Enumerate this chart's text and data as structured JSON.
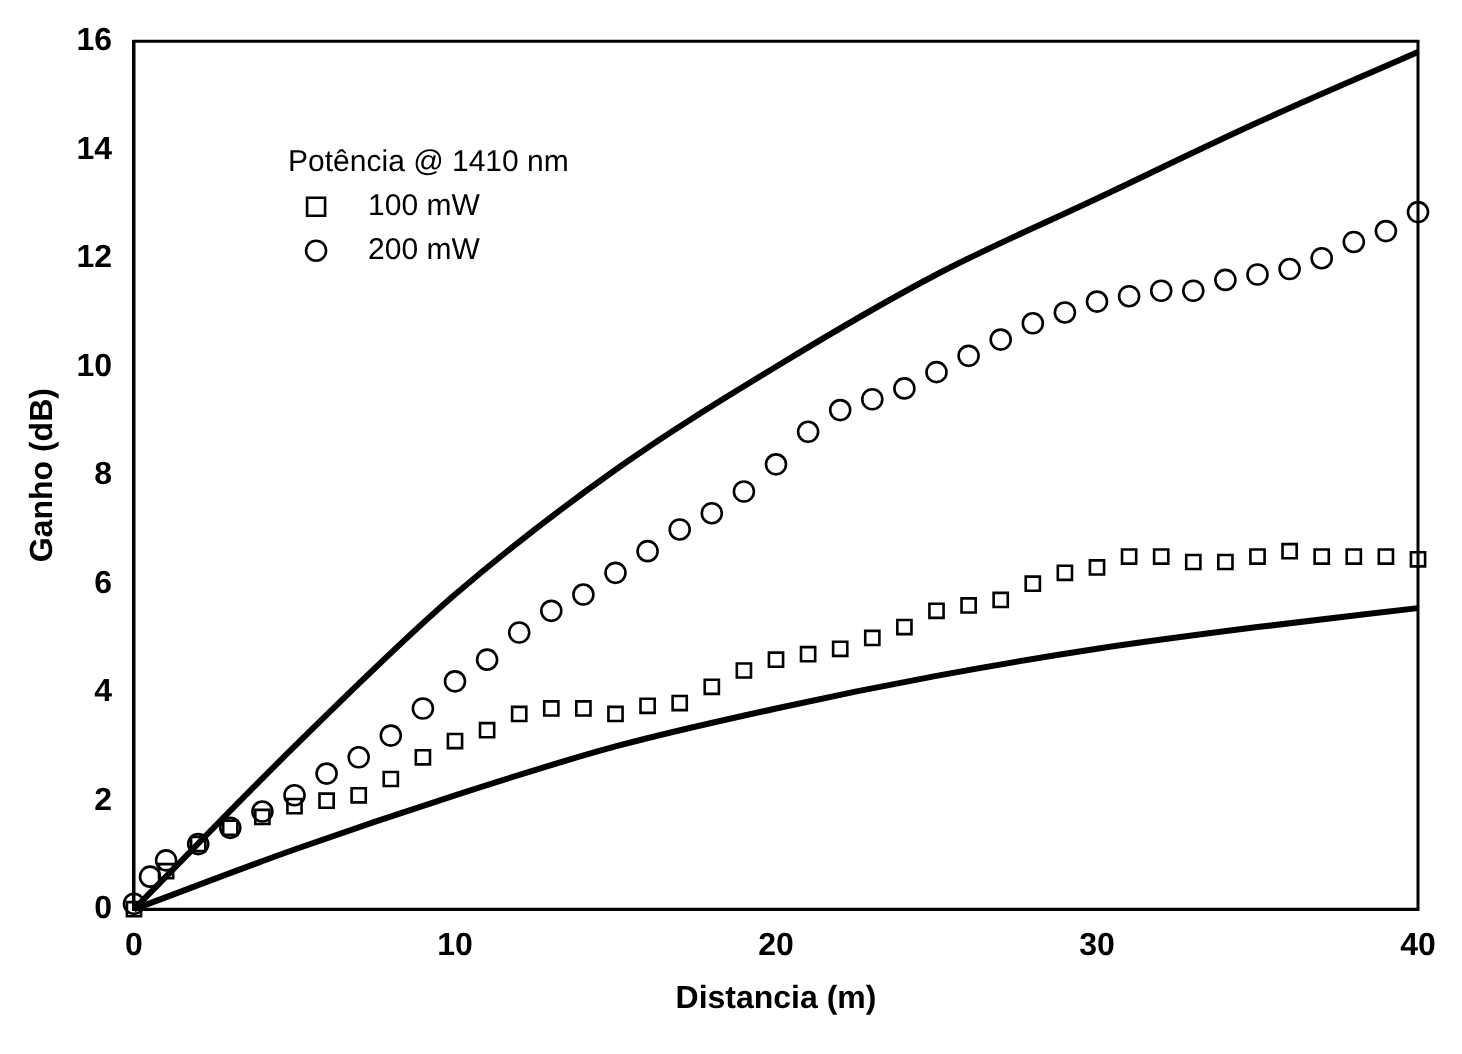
{
  "chart_data": {
    "type": "scatter",
    "xlabel": "Distancia (m)",
    "ylabel": "Ganho (dB)",
    "legend_title": "Potência @ 1410 nm",
    "legend": "top left",
    "grid": false,
    "xlim": [
      0,
      40
    ],
    "xticks": [
      0,
      10,
      20,
      30,
      40
    ],
    "ylim": [
      0,
      16
    ],
    "yticks": [
      0,
      2,
      4,
      6,
      8,
      10,
      12,
      14,
      16
    ],
    "series": [
      {
        "name": "100 mW",
        "marker": "square",
        "color": "#000000",
        "x": [
          0,
          1,
          2,
          3,
          4,
          5,
          6,
          7,
          8,
          9,
          10,
          11,
          12,
          13,
          14,
          15,
          16,
          17,
          18,
          19,
          20,
          21,
          22,
          23,
          24,
          25,
          26,
          27,
          28,
          29,
          30,
          31,
          32,
          33,
          34,
          35,
          36,
          37,
          38,
          39,
          40
        ],
        "values": [
          0,
          0.7,
          1.2,
          1.5,
          1.7,
          1.9,
          2.0,
          2.1,
          2.4,
          2.8,
          3.1,
          3.3,
          3.6,
          3.7,
          3.7,
          3.6,
          3.75,
          3.8,
          4.1,
          4.4,
          4.6,
          4.7,
          4.8,
          5.0,
          5.2,
          5.5,
          5.6,
          5.7,
          6.0,
          6.2,
          6.3,
          6.5,
          6.5,
          6.4,
          6.4,
          6.5,
          6.6,
          6.5,
          6.5,
          6.5,
          6.45
        ]
      },
      {
        "name": "200 mW",
        "marker": "circle",
        "color": "#000000",
        "x": [
          0,
          0.5,
          1,
          2,
          3,
          4,
          5,
          6,
          7,
          8,
          9,
          10,
          11,
          12,
          13,
          14,
          15,
          16,
          17,
          18,
          19,
          20,
          21,
          22,
          23,
          24,
          25,
          26,
          27,
          28,
          29,
          30,
          31,
          32,
          33,
          34,
          35,
          36,
          37,
          38,
          39,
          40
        ],
        "values": [
          0.1,
          0.6,
          0.9,
          1.2,
          1.5,
          1.8,
          2.1,
          2.5,
          2.8,
          3.2,
          3.7,
          4.2,
          4.6,
          5.1,
          5.5,
          5.8,
          6.2,
          6.6,
          7.0,
          7.3,
          7.7,
          8.2,
          8.8,
          9.2,
          9.4,
          9.6,
          9.9,
          10.2,
          10.5,
          10.8,
          11.0,
          11.2,
          11.3,
          11.4,
          11.4,
          11.6,
          11.7,
          11.8,
          12.0,
          12.3,
          12.5,
          12.85
        ]
      },
      {
        "type": "line",
        "marker": "none",
        "color": "#000000",
        "x": [
          0,
          5,
          10,
          15,
          20,
          25,
          30,
          35,
          40
        ],
        "values": [
          0,
          3.0,
          5.8,
          8.1,
          10.0,
          11.7,
          13.1,
          14.5,
          15.8
        ]
      },
      {
        "type": "line",
        "marker": "none",
        "color": "#000000",
        "x": [
          0,
          5,
          10,
          15,
          20,
          25,
          30,
          35,
          40
        ],
        "values": [
          0,
          1.1,
          2.1,
          3.0,
          3.7,
          4.3,
          4.8,
          5.2,
          5.55
        ]
      }
    ]
  }
}
